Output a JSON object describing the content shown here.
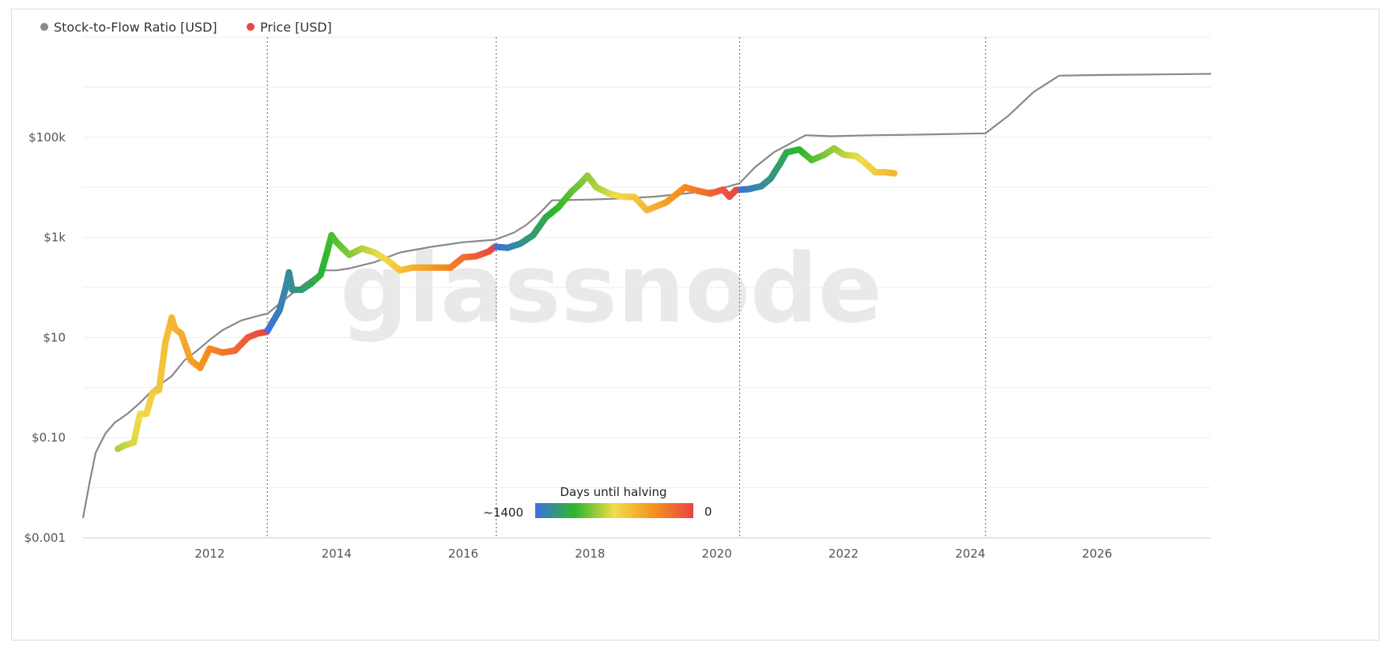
{
  "chart_data": {
    "type": "line",
    "y_scale": "log",
    "legend_position": "top-left",
    "legend": [
      {
        "name": "Stock-to-Flow Ratio [USD]",
        "color": "#888888"
      },
      {
        "name": "Price [USD]",
        "color": "#ea4646"
      }
    ],
    "y_ticks": [
      {
        "value": 0.001,
        "label": "$0.001"
      },
      {
        "value": 0.1,
        "label": "$0.10"
      },
      {
        "value": 10,
        "label": "$10"
      },
      {
        "value": 1000,
        "label": "$1k"
      },
      {
        "value": 100000,
        "label": "$100k"
      }
    ],
    "y_gridlines": [
      0.001,
      0.01,
      0.1,
      1,
      10,
      100,
      1000,
      10000,
      100000,
      1000000,
      10000000
    ],
    "ylim": [
      0.001,
      10000000
    ],
    "x_ticks": [
      {
        "value": 2012,
        "label": "2012"
      },
      {
        "value": 2014,
        "label": "2014"
      },
      {
        "value": 2016,
        "label": "2016"
      },
      {
        "value": 2018,
        "label": "2018"
      },
      {
        "value": 2020,
        "label": "2020"
      },
      {
        "value": 2022,
        "label": "2022"
      },
      {
        "value": 2024,
        "label": "2024"
      },
      {
        "value": 2026,
        "label": "2026"
      }
    ],
    "xlim": [
      2010.0,
      2027.8
    ],
    "halvings": [
      2012.91,
      2016.52,
      2020.36,
      2024.24
    ],
    "watermark": "glassnode",
    "colorbar": {
      "title": "Days until halving",
      "min_label": "~1400",
      "max_label": "0",
      "colors": [
        "#3f6fe0",
        "#2bb82b",
        "#f2dc4a",
        "#f5921e",
        "#ea4444"
      ]
    },
    "series": [
      {
        "name": "Stock-to-Flow Ratio [USD]",
        "color": "#888888",
        "x": [
          2010.0,
          2010.1,
          2010.2,
          2010.35,
          2010.5,
          2010.7,
          2010.9,
          2011.1,
          2011.4,
          2011.6,
          2011.8,
          2012.0,
          2012.2,
          2012.5,
          2012.8,
          2012.91,
          2013.2,
          2013.5,
          2013.8,
          2014.0,
          2014.2,
          2014.6,
          2015.0,
          2015.5,
          2016.0,
          2016.5,
          2016.8,
          2017.0,
          2017.2,
          2017.4,
          2017.7,
          2018.0,
          2018.5,
          2019.0,
          2019.5,
          2020.0,
          2020.36,
          2020.6,
          2020.9,
          2021.2,
          2021.4,
          2021.8,
          2022.2,
          2022.5,
          2023.0,
          2023.5,
          2024.0,
          2024.24,
          2024.6,
          2025.0,
          2025.4,
          2026.0,
          2027.0,
          2027.8
        ],
        "y": [
          0.0025,
          0.012,
          0.05,
          0.12,
          0.2,
          0.3,
          0.5,
          0.9,
          1.7,
          3.5,
          5.5,
          9.0,
          14.0,
          22.0,
          28.0,
          30.0,
          60.0,
          120.0,
          220.0,
          220.0,
          240.0,
          320.0,
          500.0,
          650.0,
          800.0,
          900.0,
          1250.0,
          1800.0,
          3000.0,
          5500.0,
          5600.0,
          5700.0,
          6000.0,
          6500.0,
          7500.0,
          9000.0,
          12000.0,
          25000.0,
          50000.0,
          80000.0,
          110000.0,
          105000.0,
          108000.0,
          110000.0,
          112000.0,
          115000.0,
          118000.0,
          120000.0,
          270000.0,
          800000.0,
          1700000.0,
          1750000.0,
          1800000.0,
          1850000.0
        ]
      },
      {
        "name": "Price [USD]",
        "color": "#ea4646",
        "x": [
          2010.55,
          2010.65,
          2010.8,
          2010.9,
          2011.0,
          2011.1,
          2011.2,
          2011.3,
          2011.4,
          2011.45,
          2011.55,
          2011.7,
          2011.85,
          2011.95,
          2012.0,
          2012.2,
          2012.4,
          2012.6,
          2012.75,
          2012.9,
          2013.1,
          2013.2,
          2013.25,
          2013.3,
          2013.45,
          2013.6,
          2013.75,
          2013.85,
          2013.92,
          2014.0,
          2014.2,
          2014.4,
          2014.6,
          2014.8,
          2015.0,
          2015.2,
          2015.5,
          2015.8,
          2016.0,
          2016.2,
          2016.4,
          2016.5,
          2016.7,
          2016.9,
          2017.1,
          2017.3,
          2017.5,
          2017.7,
          2017.85,
          2017.96,
          2018.1,
          2018.3,
          2018.5,
          2018.7,
          2018.9,
          2019.2,
          2019.5,
          2019.7,
          2019.9,
          2020.1,
          2020.2,
          2020.3,
          2020.5,
          2020.7,
          2020.85,
          2021.0,
          2021.1,
          2021.3,
          2021.5,
          2021.7,
          2021.85,
          2022.0,
          2022.2,
          2022.35,
          2022.5,
          2022.65,
          2022.8
        ],
        "y": [
          0.06,
          0.07,
          0.08,
          0.3,
          0.3,
          0.8,
          0.9,
          8.0,
          25.0,
          15.0,
          12.0,
          3.5,
          2.5,
          4.5,
          6.0,
          5.0,
          5.5,
          10.0,
          12.0,
          13.0,
          35.0,
          100.0,
          200.0,
          90.0,
          90.0,
          120.0,
          180.0,
          500.0,
          1100.0,
          800.0,
          450.0,
          600.0,
          500.0,
          350.0,
          220.0,
          250.0,
          250.0,
          250.0,
          400.0,
          420.0,
          520.0,
          650.0,
          620.0,
          750.0,
          1100.0,
          2500.0,
          4000.0,
          8000.0,
          12000.0,
          17000.0,
          10000.0,
          7500.0,
          6500.0,
          6400.0,
          3500.0,
          5000.0,
          10000.0,
          8500.0,
          7500.0,
          9000.0,
          6500.0,
          8800.0,
          9200.0,
          10500.0,
          15000.0,
          30000.0,
          50000.0,
          57000.0,
          35000.0,
          45000.0,
          60000.0,
          45000.0,
          42000.0,
          30000.0,
          20000.0,
          20000.0,
          19000.0
        ]
      }
    ]
  }
}
